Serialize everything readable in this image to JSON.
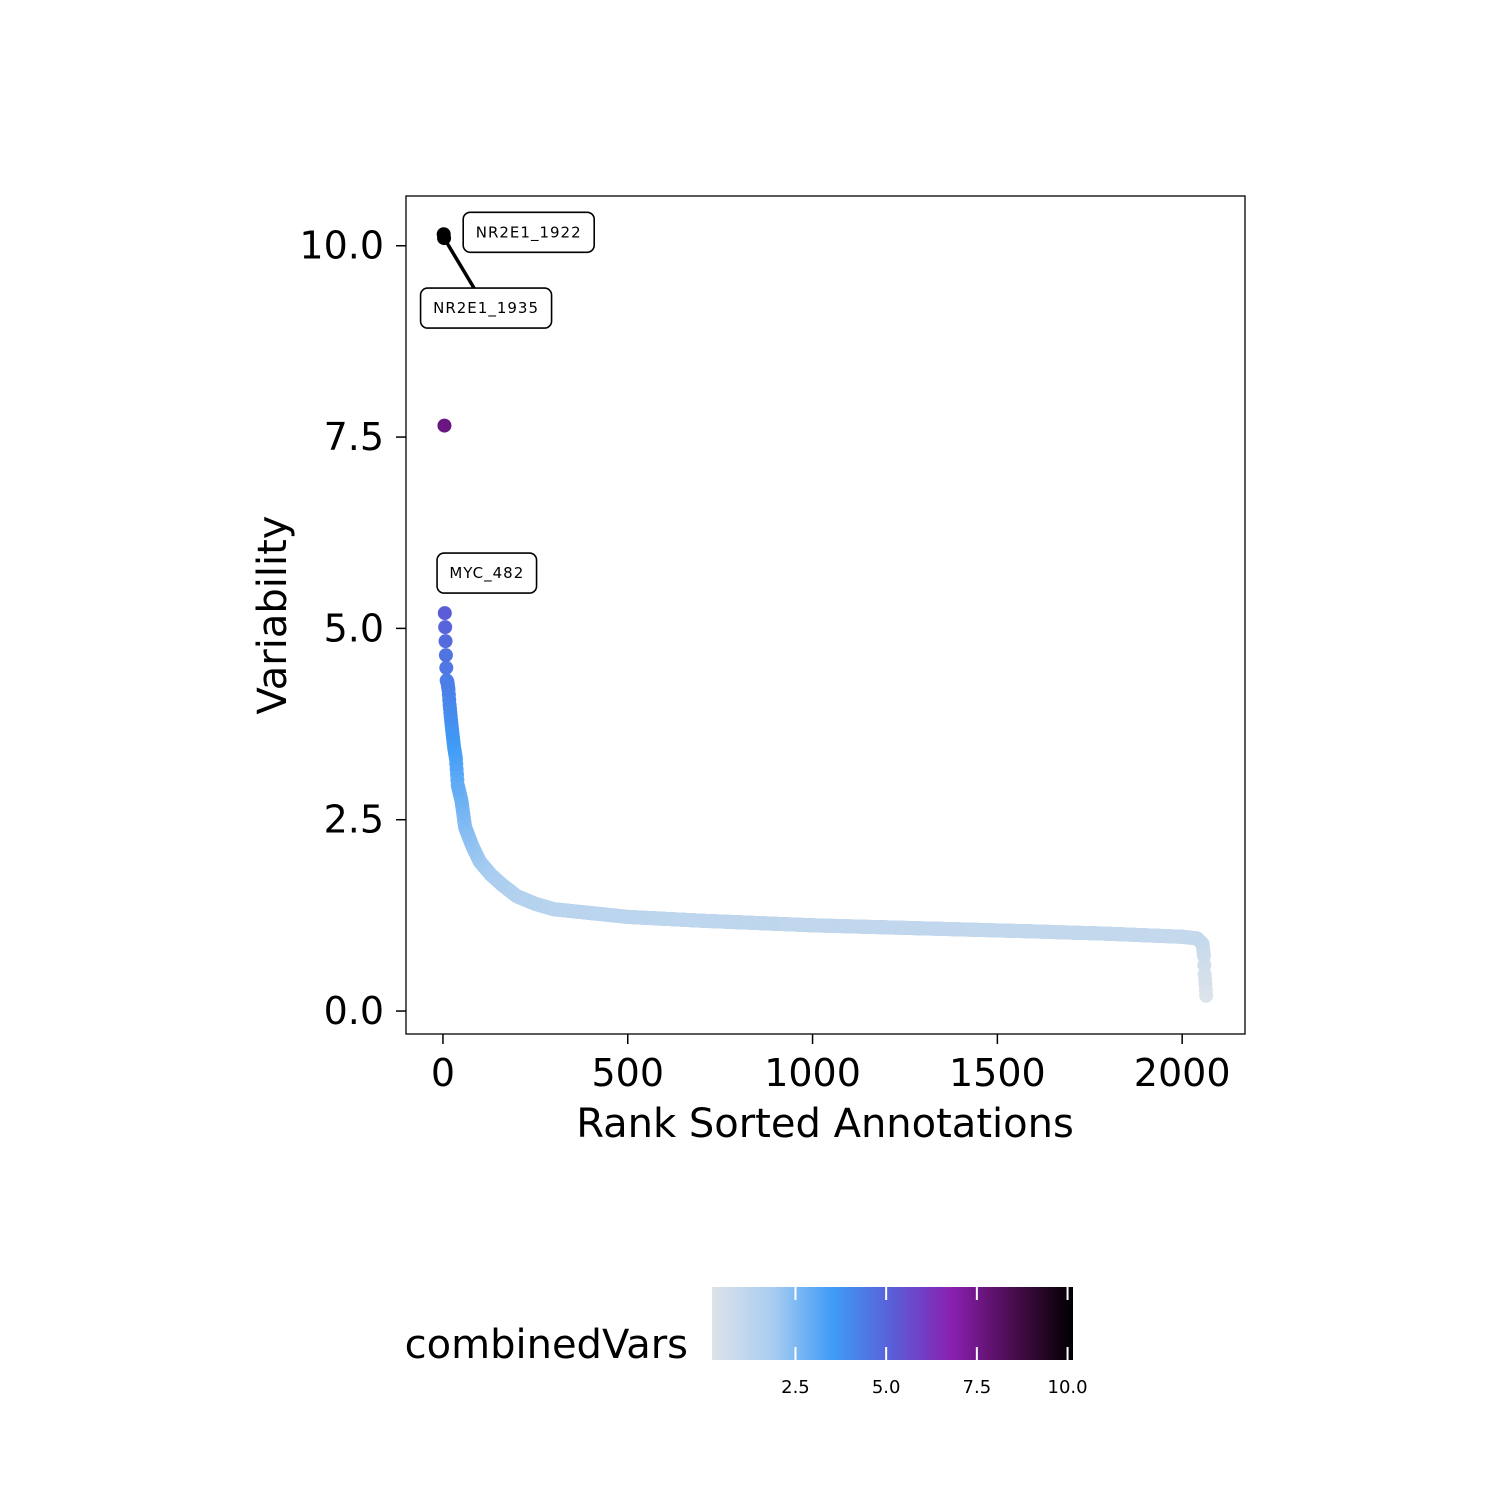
{
  "chart_data": {
    "type": "scatter",
    "title": "",
    "xlabel": "Rank Sorted Annotations",
    "ylabel": "Variability",
    "xlim": [
      -100,
      2170
    ],
    "ylim": [
      -0.3,
      10.65
    ],
    "x_ticks": [
      0,
      500,
      1000,
      1500,
      2000
    ],
    "x_tick_labels": [
      "0",
      "500",
      "1000",
      "1500",
      "2000"
    ],
    "y_ticks": [
      0.0,
      2.5,
      5.0,
      7.5,
      10.0
    ],
    "y_tick_labels": [
      "0.0",
      "2.5",
      "5.0",
      "7.5",
      "10.0"
    ],
    "grid": false,
    "n_points": 2065,
    "color_by": "combinedVars",
    "curve_knots": {
      "x": [
        2,
        3,
        5,
        8,
        10,
        12,
        15,
        18,
        22,
        26,
        30,
        35,
        40,
        50,
        60,
        80,
        100,
        130,
        160,
        200,
        250,
        300,
        400,
        500,
        700,
        1000,
        1300,
        1600,
        1800,
        2000,
        2040,
        2055,
        2059,
        2061,
        2063,
        2065
      ],
      "y": [
        10.15,
        10.1,
        5.2,
        4.65,
        4.32,
        4.3,
        4.2,
        4.0,
        3.8,
        3.62,
        3.45,
        3.3,
        2.95,
        2.75,
        2.4,
        2.15,
        1.95,
        1.78,
        1.65,
        1.5,
        1.4,
        1.33,
        1.28,
        1.23,
        1.18,
        1.12,
        1.08,
        1.04,
        1.01,
        0.97,
        0.95,
        0.88,
        0.72,
        0.48,
        0.35,
        0.2
      ]
    },
    "annotations": [
      {
        "label": "NR2E1_1922",
        "x": 2,
        "y": 10.15
      },
      {
        "label": "NR2E1_1935",
        "x": 3,
        "y": 10.1
      },
      {
        "label": "MYC_482",
        "x": 5,
        "y": 5.2
      }
    ],
    "legend": {
      "title": "combinedVars",
      "position": "bottom",
      "range": [
        0.2,
        10.15
      ],
      "ticks": [
        2.5,
        5.0,
        7.5,
        10.0
      ],
      "tick_labels": [
        "2.5",
        "5.0",
        "7.5",
        "10.0"
      ],
      "colormap": [
        "#dde3ea",
        "#a9cdf0",
        "#3f9cf6",
        "#5a5ed8",
        "#8a1fb0",
        "#4a0c4e",
        "#000000"
      ]
    }
  }
}
